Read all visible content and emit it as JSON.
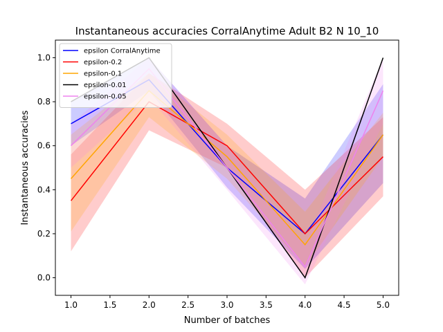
{
  "chart_data": {
    "type": "line",
    "title": "Instantaneous accuracies CorralAnytime Adult B2 N 10_10",
    "xlabel": "Number of batches",
    "ylabel": "Instantaneous accuracies",
    "xlim": [
      0.8,
      5.2
    ],
    "ylim": [
      -0.08,
      1.08
    ],
    "xticks": [
      "1.0",
      "1.5",
      "2.0",
      "2.5",
      "3.0",
      "3.5",
      "4.0",
      "4.5",
      "5.0"
    ],
    "yticks": [
      "0.0",
      "0.2",
      "0.4",
      "0.6",
      "0.8",
      "1.0"
    ],
    "grid": false,
    "legend_position": "top-left",
    "x": [
      1,
      2,
      3,
      4,
      5
    ],
    "series": [
      {
        "name": "epsilon CorralAnytime",
        "color": "#0000ff",
        "values": [
          0.7,
          0.9,
          0.5,
          0.2,
          0.65
        ],
        "lower": [
          0.6,
          0.85,
          0.41,
          0.04,
          0.43
        ],
        "upper": [
          0.8,
          1.0,
          0.6,
          0.36,
          0.88
        ]
      },
      {
        "name": "epsilon-0.2",
        "color": "#ff0000",
        "values": [
          0.35,
          0.8,
          0.6,
          0.2,
          0.55
        ],
        "lower": [
          0.12,
          0.67,
          0.5,
          0.0,
          0.37
        ],
        "upper": [
          0.56,
          0.93,
          0.7,
          0.4,
          0.73
        ]
      },
      {
        "name": "epsilon-0.1",
        "color": "#ffa500",
        "values": [
          0.45,
          0.85,
          0.55,
          0.15,
          0.65
        ],
        "lower": [
          0.21,
          0.73,
          0.45,
          0.05,
          0.55
        ],
        "upper": [
          0.65,
          0.93,
          0.65,
          0.3,
          0.75
        ]
      },
      {
        "name": "epsilon-0.01",
        "color": "#000000",
        "values": [
          0.8,
          1.0,
          0.5,
          0.0,
          1.0
        ],
        "lower": [
          0.8,
          1.0,
          0.5,
          0.0,
          1.0
        ],
        "upper": [
          0.8,
          1.0,
          0.5,
          0.0,
          1.0
        ]
      },
      {
        "name": "epsilon-0.05",
        "color": "#ee82ee",
        "values": [
          0.6,
          0.95,
          0.5,
          0.05,
          0.85
        ],
        "lower": [
          0.5,
          0.82,
          0.4,
          -0.03,
          0.7
        ],
        "upper": [
          0.7,
          1.0,
          0.6,
          0.15,
          1.0
        ]
      }
    ]
  }
}
